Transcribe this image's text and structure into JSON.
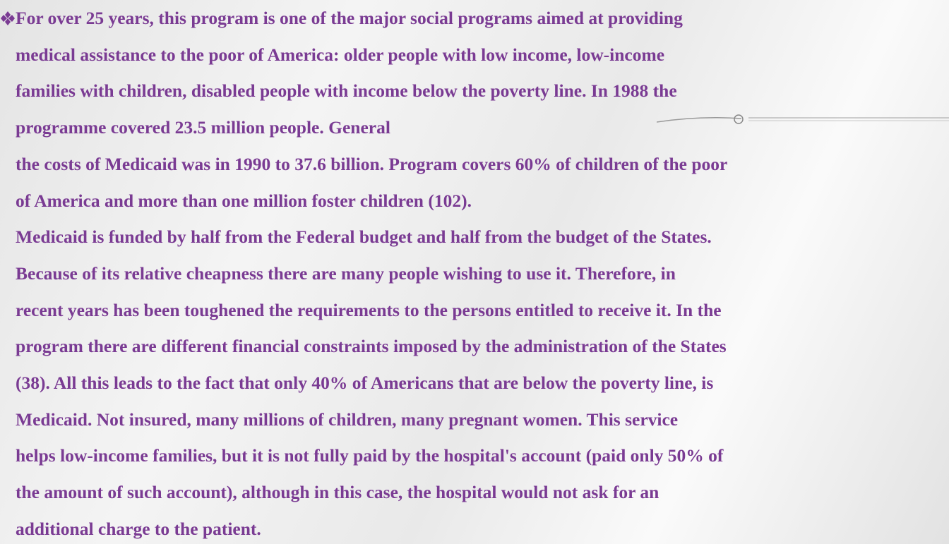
{
  "body": {
    "lines": [
      "For over 25 years, this program is one of the major social programs aimed at providing",
      "medical assistance to the poor of America: older people with low income, low-income",
      "families with children, disabled people with income below the poverty line. In 1988 the",
      "programme covered 23.5 million people. General",
      "the costs of Medicaid was in 1990 to 37.6 billion. Program covers 60% of children of the poor",
      "of America and more than one million foster children (102).",
      "Medicaid is funded by half from the Federal budget and half from the budget of the States.",
      "Because of its relative cheapness there are many people wishing to use it. Therefore, in",
      "recent years has been toughened the requirements to the persons entitled to receive it. In the",
      "program there are different financial constraints imposed by the administration of the States",
      "(38). All this leads to the fact that only 40% of Americans that are below the poverty line, is",
      "Medicaid. Not insured, many millions of children, many pregnant women. This service",
      "helps low-income families, but it is not fully paid by the hospital's account (paid only 50% of",
      "the amount of such account), although in this case, the hospital would not ask for an",
      "additional charge to the patient."
    ]
  }
}
